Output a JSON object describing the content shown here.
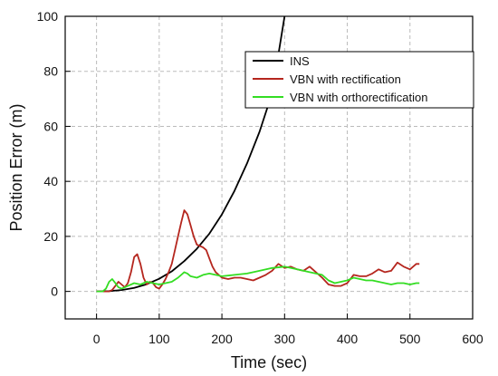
{
  "chart_data": {
    "type": "line",
    "title": "",
    "xlabel": "Time (sec)",
    "ylabel": "Position Error (m)",
    "xlim": [
      -50,
      600
    ],
    "ylim": [
      -10,
      100
    ],
    "xticks": [
      0,
      100,
      200,
      300,
      400,
      500,
      600
    ],
    "yticks": [
      0,
      20,
      40,
      60,
      80,
      100
    ],
    "grid": true,
    "legend_position": "top-right",
    "series": [
      {
        "name": "INS",
        "color": "#000000",
        "x": [
          0,
          20,
          40,
          60,
          80,
          100,
          120,
          140,
          160,
          180,
          200,
          220,
          240,
          260,
          280,
          300
        ],
        "y": [
          0,
          0.1,
          0.5,
          1.3,
          2.6,
          4.6,
          7.3,
          11,
          15.5,
          21,
          28,
          36.5,
          46.5,
          58,
          72,
          100
        ]
      },
      {
        "name": "VBN with rectification",
        "color": "#b5261e",
        "x": [
          0,
          20,
          25,
          30,
          35,
          40,
          45,
          50,
          55,
          60,
          65,
          70,
          75,
          80,
          85,
          90,
          95,
          100,
          105,
          110,
          115,
          120,
          125,
          130,
          135,
          140,
          145,
          150,
          155,
          160,
          165,
          170,
          175,
          180,
          185,
          190,
          195,
          200,
          210,
          220,
          230,
          240,
          250,
          260,
          270,
          280,
          290,
          300,
          310,
          320,
          330,
          340,
          350,
          360,
          370,
          380,
          390,
          400,
          410,
          420,
          430,
          440,
          450,
          460,
          470,
          480,
          490,
          500,
          510,
          515
        ],
        "y": [
          0,
          0,
          0.5,
          2,
          3.5,
          2.5,
          1.5,
          3,
          7,
          12.5,
          13.5,
          10,
          5,
          2.5,
          3.5,
          3,
          1.5,
          1,
          2.5,
          4.5,
          7,
          10,
          15,
          20,
          25,
          29.5,
          28,
          24,
          20,
          17,
          16.5,
          16,
          15,
          12,
          9,
          7,
          6,
          5,
          4.5,
          5,
          5,
          4.5,
          4,
          5,
          6,
          7.5,
          10,
          8.5,
          9,
          8,
          7.5,
          9,
          7,
          5,
          2.5,
          2,
          2,
          3,
          6,
          5.5,
          5.5,
          6.5,
          8,
          7,
          7.5,
          10.5,
          9,
          8,
          10,
          10
        ]
      },
      {
        "name": "VBN with orthorectification",
        "color": "#33dd22",
        "x": [
          0,
          10,
          15,
          20,
          25,
          30,
          35,
          40,
          50,
          60,
          70,
          80,
          90,
          100,
          110,
          120,
          130,
          140,
          145,
          150,
          160,
          170,
          180,
          190,
          200,
          220,
          240,
          260,
          280,
          300,
          320,
          340,
          360,
          370,
          380,
          390,
          400,
          410,
          420,
          430,
          440,
          450,
          460,
          470,
          480,
          490,
          500,
          510,
          515
        ],
        "y": [
          0,
          0,
          1,
          3.5,
          4.5,
          3,
          1.5,
          1,
          2,
          3,
          2.5,
          3.5,
          3,
          2.5,
          3,
          3.5,
          5,
          7,
          6.5,
          5.5,
          5,
          6,
          6.5,
          6,
          5.5,
          6,
          6.5,
          7.5,
          8.5,
          9,
          8,
          7,
          6,
          4,
          3,
          3.5,
          4,
          5,
          4.5,
          4,
          4,
          3.5,
          3,
          2.5,
          3,
          3,
          2.5,
          3,
          3
        ]
      }
    ]
  }
}
